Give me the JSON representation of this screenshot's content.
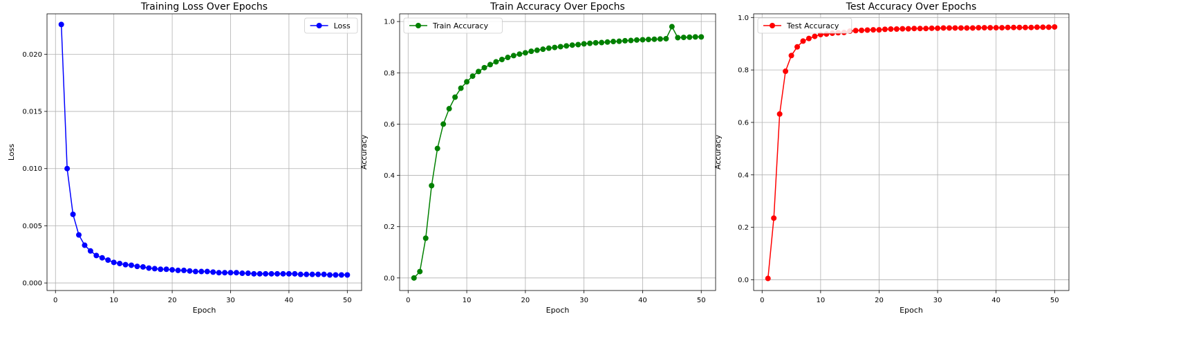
{
  "chart_data": [
    {
      "type": "line",
      "title": "Training Loss Over Epochs",
      "xlabel": "Epoch",
      "ylabel": "Loss",
      "xlim": [
        -1.45,
        52.45
      ],
      "ylim": [
        -0.00066,
        0.02353
      ],
      "xticks": [
        0,
        10,
        20,
        30,
        40,
        50
      ],
      "yticks": [
        0.0,
        0.005,
        0.01,
        0.015,
        0.02
      ],
      "xtick_labels": [
        "0",
        "10",
        "20",
        "30",
        "40",
        "50"
      ],
      "ytick_labels": [
        "0.000",
        "0.005",
        "0.010",
        "0.015",
        "0.020"
      ],
      "grid": true,
      "legend_position": "top-right",
      "color": "#0000ff",
      "series": [
        {
          "name": "Loss",
          "x": [
            1,
            2,
            3,
            4,
            5,
            6,
            7,
            8,
            9,
            10,
            11,
            12,
            13,
            14,
            15,
            16,
            17,
            18,
            19,
            20,
            21,
            22,
            23,
            24,
            25,
            26,
            27,
            28,
            29,
            30,
            31,
            32,
            33,
            34,
            35,
            36,
            37,
            38,
            39,
            40,
            41,
            42,
            43,
            44,
            45,
            46,
            47,
            48,
            49,
            50
          ],
          "values": [
            0.0226,
            0.01,
            0.006,
            0.0042,
            0.0033,
            0.0028,
            0.0024,
            0.0022,
            0.002,
            0.0018,
            0.0017,
            0.0016,
            0.00155,
            0.00145,
            0.0014,
            0.0013,
            0.00125,
            0.0012,
            0.0012,
            0.00115,
            0.0011,
            0.0011,
            0.00105,
            0.001,
            0.001,
            0.001,
            0.00095,
            0.0009,
            0.0009,
            0.0009,
            0.0009,
            0.00085,
            0.00085,
            0.0008,
            0.0008,
            0.0008,
            0.0008,
            0.0008,
            0.0008,
            0.0008,
            0.0008,
            0.00075,
            0.00075,
            0.00075,
            0.00075,
            0.00075,
            0.0007,
            0.0007,
            0.0007,
            0.0007
          ]
        }
      ]
    },
    {
      "type": "line",
      "title": "Train Accuracy Over Epochs",
      "xlabel": "Epoch",
      "ylabel": "Accuracy",
      "xlim": [
        -1.45,
        52.45
      ],
      "ylim": [
        -0.049,
        1.03
      ],
      "xticks": [
        0,
        10,
        20,
        30,
        40,
        50
      ],
      "yticks": [
        0.0,
        0.2,
        0.4,
        0.6,
        0.8,
        1.0
      ],
      "xtick_labels": [
        "0",
        "10",
        "20",
        "30",
        "40",
        "50"
      ],
      "ytick_labels": [
        "0.0",
        "0.2",
        "0.4",
        "0.6",
        "0.8",
        "1.0"
      ],
      "grid": true,
      "legend_position": "top-left",
      "color": "#008000",
      "series": [
        {
          "name": "Train Accuracy",
          "x": [
            1,
            2,
            3,
            4,
            5,
            6,
            7,
            8,
            9,
            10,
            11,
            12,
            13,
            14,
            15,
            16,
            17,
            18,
            19,
            20,
            21,
            22,
            23,
            24,
            25,
            26,
            27,
            28,
            29,
            30,
            31,
            32,
            33,
            34,
            35,
            36,
            37,
            38,
            39,
            40,
            41,
            42,
            43,
            44,
            45,
            46,
            47,
            48,
            49,
            50
          ],
          "values": [
            0.0,
            0.025,
            0.155,
            0.36,
            0.505,
            0.6,
            0.66,
            0.705,
            0.74,
            0.765,
            0.787,
            0.805,
            0.82,
            0.832,
            0.843,
            0.852,
            0.86,
            0.867,
            0.873,
            0.878,
            0.884,
            0.888,
            0.892,
            0.896,
            0.899,
            0.902,
            0.905,
            0.908,
            0.91,
            0.913,
            0.915,
            0.917,
            0.918,
            0.92,
            0.922,
            0.923,
            0.925,
            0.926,
            0.928,
            0.929,
            0.93,
            0.931,
            0.932,
            0.933,
            0.98,
            0.937,
            0.938,
            0.939,
            0.94,
            0.94
          ]
        }
      ]
    },
    {
      "type": "line",
      "title": "Test Accuracy Over Epochs",
      "xlabel": "Epoch",
      "ylabel": "Accuracy",
      "xlim": [
        -1.45,
        52.45
      ],
      "ylim": [
        -0.041,
        1.014
      ],
      "xticks": [
        0,
        10,
        20,
        30,
        40,
        50
      ],
      "yticks": [
        0.0,
        0.2,
        0.4,
        0.6,
        0.8,
        1.0
      ],
      "xtick_labels": [
        "0",
        "10",
        "20",
        "30",
        "40",
        "50"
      ],
      "ytick_labels": [
        "0.0",
        "0.2",
        "0.4",
        "0.6",
        "0.8",
        "1.0"
      ],
      "grid": true,
      "legend_position": "top-left",
      "color": "#ff0000",
      "series": [
        {
          "name": "Test Accuracy",
          "x": [
            1,
            2,
            3,
            4,
            5,
            6,
            7,
            8,
            9,
            10,
            11,
            12,
            13,
            14,
            15,
            16,
            17,
            18,
            19,
            20,
            21,
            22,
            23,
            24,
            25,
            26,
            27,
            28,
            29,
            30,
            31,
            32,
            33,
            34,
            35,
            36,
            37,
            38,
            39,
            40,
            41,
            42,
            43,
            44,
            45,
            46,
            47,
            48,
            49,
            50
          ],
          "values": [
            0.005,
            0.235,
            0.632,
            0.795,
            0.855,
            0.888,
            0.91,
            0.92,
            0.928,
            0.935,
            0.937,
            0.94,
            0.942,
            0.943,
            0.948,
            0.95,
            0.951,
            0.952,
            0.953,
            0.953,
            0.955,
            0.956,
            0.956,
            0.957,
            0.957,
            0.958,
            0.958,
            0.958,
            0.959,
            0.959,
            0.96,
            0.96,
            0.96,
            0.96,
            0.96,
            0.96,
            0.961,
            0.961,
            0.961,
            0.961,
            0.961,
            0.962,
            0.962,
            0.962,
            0.962,
            0.962,
            0.963,
            0.963,
            0.963,
            0.964
          ]
        }
      ]
    }
  ]
}
